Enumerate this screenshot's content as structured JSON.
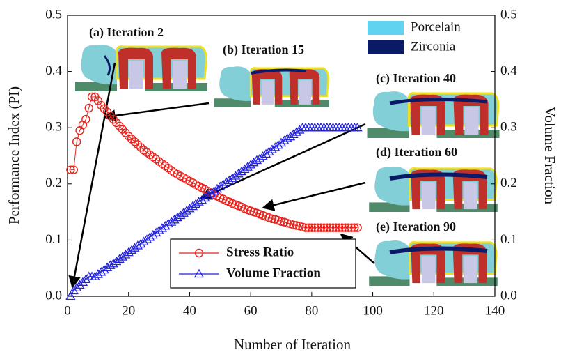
{
  "chart_data": {
    "type": "line",
    "xlabel": "Number of Iteration",
    "ylabel": "Performance Index (PI)",
    "y2label": "Volume Fraction",
    "xlim": [
      0,
      140
    ],
    "xticks": [
      0,
      20,
      40,
      60,
      80,
      100,
      120,
      140
    ],
    "ylim": [
      0,
      0.5
    ],
    "yticks": [
      {
        "value": 0,
        "label": "0.0"
      },
      0.1,
      0.2,
      0.3,
      0.4,
      0.5
    ],
    "y2lim": [
      0,
      0.5
    ],
    "y2ticks": [
      {
        "value": 0,
        "label": "0.0"
      },
      0.1,
      0.2,
      0.3,
      0.4,
      0.5
    ],
    "legend": "bottom-center",
    "x": [
      1,
      2,
      3,
      4,
      5,
      6,
      7,
      8,
      9,
      10,
      11,
      12,
      13,
      14,
      15,
      16,
      17,
      18,
      19,
      20,
      21,
      22,
      23,
      24,
      25,
      26,
      27,
      28,
      29,
      30,
      31,
      32,
      33,
      34,
      35,
      36,
      37,
      38,
      39,
      40,
      41,
      42,
      43,
      44,
      45,
      46,
      47,
      48,
      49,
      50,
      51,
      52,
      53,
      54,
      55,
      56,
      57,
      58,
      59,
      60,
      61,
      62,
      63,
      64,
      65,
      66,
      67,
      68,
      69,
      70,
      71,
      72,
      73,
      74,
      75,
      76,
      77,
      78,
      79,
      80,
      81,
      82,
      83,
      84,
      85,
      86,
      87,
      88,
      89,
      90,
      91,
      92,
      93,
      94,
      95
    ],
    "series": [
      {
        "name": "Stress Ratio",
        "color": "#e8231d",
        "marker": "circle",
        "values": [
          0.225,
          0.225,
          0.275,
          0.295,
          0.305,
          0.315,
          0.335,
          0.355,
          0.355,
          0.348,
          0.34,
          0.334,
          0.328,
          0.321,
          0.315,
          0.309,
          0.303,
          0.297,
          0.291,
          0.285,
          0.28,
          0.275,
          0.27,
          0.265,
          0.26,
          0.256,
          0.252,
          0.248,
          0.244,
          0.24,
          0.236,
          0.232,
          0.228,
          0.224,
          0.22,
          0.217,
          0.214,
          0.211,
          0.208,
          0.205,
          0.202,
          0.199,
          0.196,
          0.193,
          0.19,
          0.187,
          0.184,
          0.181,
          0.178,
          0.175,
          0.173,
          0.17,
          0.168,
          0.165,
          0.163,
          0.161,
          0.159,
          0.156,
          0.154,
          0.152,
          0.15,
          0.148,
          0.146,
          0.144,
          0.142,
          0.14,
          0.138,
          0.137,
          0.135,
          0.133,
          0.132,
          0.13,
          0.129,
          0.127,
          0.126,
          0.125,
          0.123,
          0.122,
          0.122,
          0.122,
          0.122,
          0.122,
          0.122,
          0.122,
          0.122,
          0.122,
          0.122,
          0.122,
          0.122,
          0.122,
          0.122,
          0.122,
          0.122,
          0.122,
          0.122
        ]
      },
      {
        "name": "Volume Fraction",
        "color": "#2222dd",
        "marker": "triangle",
        "axis": "y2",
        "values": [
          0,
          0.01,
          0.015,
          0.02,
          0.025,
          0.03,
          0.035,
          0.035,
          0.035,
          0.039,
          0.043,
          0.047,
          0.051,
          0.055,
          0.058,
          0.062,
          0.066,
          0.07,
          0.074,
          0.078,
          0.082,
          0.086,
          0.09,
          0.093,
          0.097,
          0.101,
          0.105,
          0.109,
          0.113,
          0.117,
          0.121,
          0.125,
          0.129,
          0.132,
          0.136,
          0.14,
          0.144,
          0.148,
          0.152,
          0.156,
          0.16,
          0.164,
          0.168,
          0.171,
          0.175,
          0.179,
          0.183,
          0.187,
          0.191,
          0.195,
          0.199,
          0.203,
          0.206,
          0.21,
          0.214,
          0.218,
          0.222,
          0.226,
          0.23,
          0.234,
          0.238,
          0.242,
          0.245,
          0.249,
          0.253,
          0.257,
          0.261,
          0.265,
          0.269,
          0.273,
          0.277,
          0.281,
          0.284,
          0.288,
          0.292,
          0.296,
          0.3,
          0.3,
          0.3,
          0.3,
          0.3,
          0.3,
          0.3,
          0.3,
          0.3,
          0.3,
          0.3,
          0.3,
          0.3,
          0.3,
          0.3,
          0.3,
          0.3,
          0.3,
          0.3
        ]
      }
    ],
    "annotations": [
      "(a) Iteration 2",
      "(b) Iteration 15",
      "(c) Iteration 40",
      "(d) Iteration 60",
      "(e) Iteration 90"
    ],
    "material_legend": [
      {
        "name": "Porcelain",
        "color": "#5fd3f0"
      },
      {
        "name": "Zirconia",
        "color": "#0a1a66"
      }
    ]
  }
}
